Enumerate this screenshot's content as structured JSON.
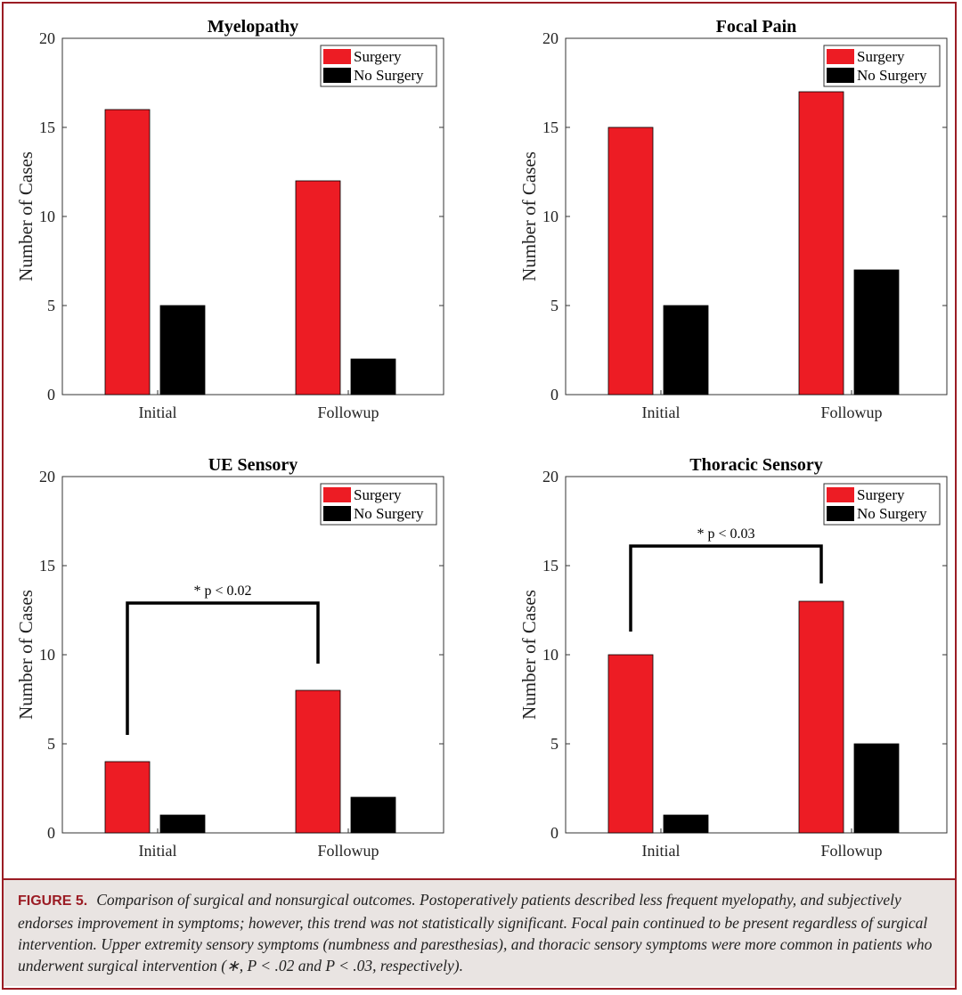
{
  "chart_data": [
    {
      "type": "bar",
      "title": "Myelopathy",
      "categories": [
        "Initial",
        "Followup"
      ],
      "series": [
        {
          "name": "Surgery",
          "values": [
            16,
            12
          ]
        },
        {
          "name": "No Surgery",
          "values": [
            5,
            2
          ]
        }
      ],
      "ylabel": "Number of Cases",
      "ylim": [
        0,
        20
      ],
      "yticks": [
        0,
        5,
        10,
        15,
        20
      ],
      "legend": "top-right",
      "significance": null
    },
    {
      "type": "bar",
      "title": "Focal Pain",
      "categories": [
        "Initial",
        "Followup"
      ],
      "series": [
        {
          "name": "Surgery",
          "values": [
            15,
            17
          ]
        },
        {
          "name": "No Surgery",
          "values": [
            5,
            7
          ]
        }
      ],
      "ylabel": "Number of Cases",
      "ylim": [
        0,
        20
      ],
      "yticks": [
        0,
        5,
        10,
        15,
        20
      ],
      "legend": "top-right",
      "significance": null
    },
    {
      "type": "bar",
      "title": "UE Sensory",
      "categories": [
        "Initial",
        "Followup"
      ],
      "series": [
        {
          "name": "Surgery",
          "values": [
            4,
            8
          ]
        },
        {
          "name": "No Surgery",
          "values": [
            1,
            2
          ]
        }
      ],
      "ylabel": "Number of Cases",
      "ylim": [
        0,
        20
      ],
      "yticks": [
        0,
        5,
        10,
        15,
        20
      ],
      "legend": "top-right",
      "significance": {
        "label": "* p < 0.02",
        "bracket_y": 12.9,
        "left_end": 5.5,
        "right_end": 9.5
      }
    },
    {
      "type": "bar",
      "title": "Thoracic Sensory",
      "categories": [
        "Initial",
        "Followup"
      ],
      "series": [
        {
          "name": "Surgery",
          "values": [
            10,
            13
          ]
        },
        {
          "name": "No Surgery",
          "values": [
            1,
            5
          ]
        }
      ],
      "ylabel": "Number of Cases",
      "ylim": [
        0,
        20
      ],
      "yticks": [
        0,
        5,
        10,
        15,
        20
      ],
      "legend": "top-right",
      "significance": {
        "label": "* p < 0.03",
        "bracket_y": 16.1,
        "left_end": 11.3,
        "right_end": 14.0
      }
    }
  ],
  "colors": {
    "surgery": "#ed1c24",
    "no_surgery": "#000000",
    "accent": "#9b1c24"
  },
  "caption": {
    "label": "FIGURE 5.",
    "text": "Comparison of surgical and nonsurgical outcomes. Postoperatively patients described less frequent myelopathy, and subjectively endorses improvement in symptoms; however, this trend was not statistically significant. Focal pain continued to be present regardless of surgical intervention. Upper extremity sensory symptoms (numbness and paresthesias), and thoracic sensory symptoms were more common in patients who underwent surgical intervention (∗, P < .02 and P < .03, respectively)."
  }
}
